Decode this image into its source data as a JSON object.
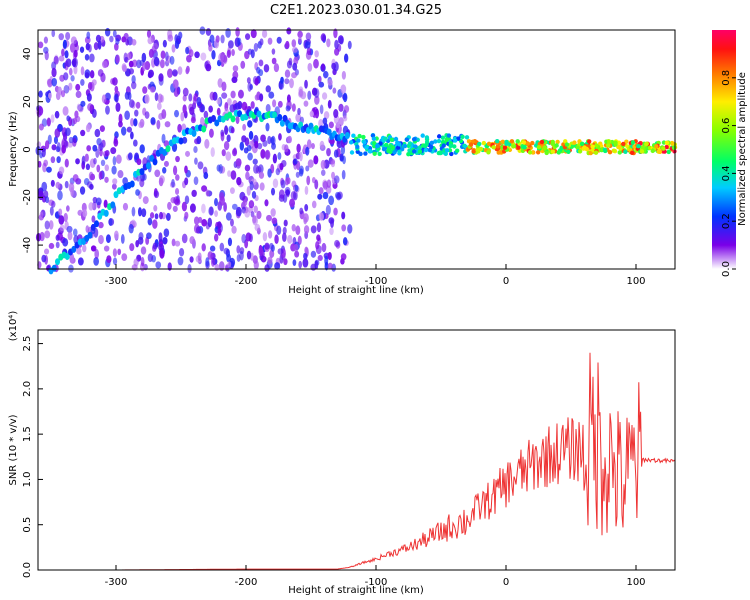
{
  "title": "C2E1.2023.030.01.34.G25",
  "colors": {
    "snr_line": "#ee3333",
    "axis": "#000000"
  },
  "chart_data": [
    {
      "type": "heatmap",
      "xlabel": "Height of straight line (km)",
      "ylabel": "Frequency (Hz)",
      "xlim": [
        -360,
        130
      ],
      "ylim": [
        -50,
        50
      ],
      "x_ticks": [
        -300,
        -200,
        -100,
        0,
        100
      ],
      "y_ticks": [
        -40,
        -20,
        0,
        20,
        40
      ],
      "colorbar": {
        "label": "Normalized spectral amplitude",
        "range": [
          0.0,
          1.0
        ],
        "ticks": [
          0.0,
          0.2,
          0.4,
          0.6,
          0.8
        ]
      },
      "features": [
        {
          "kind": "noise-field",
          "x_range": [
            -360,
            -120
          ],
          "y_range": [
            -50,
            50
          ],
          "amplitude": 0.1
        },
        {
          "kind": "arc",
          "points": [
            [
              -350,
              -50
            ],
            [
              -325,
              -38
            ],
            [
              -300,
              -20
            ],
            [
              -275,
              -6
            ],
            [
              -250,
              5
            ],
            [
              -225,
              12
            ],
            [
              -200,
              15
            ],
            [
              -180,
              14
            ],
            [
              -160,
              10
            ],
            [
              -140,
              7
            ],
            [
              -120,
              5
            ]
          ],
          "amplitude": 0.3
        },
        {
          "kind": "band",
          "x_range": [
            -120,
            -30
          ],
          "center": 2,
          "width": 4,
          "amplitude": 0.35
        },
        {
          "kind": "band",
          "x_range": [
            -30,
            100
          ],
          "center": 1,
          "width": 2.5,
          "amplitude": 0.65
        },
        {
          "kind": "band",
          "x_range": [
            100,
            130
          ],
          "center": 1,
          "width": 2,
          "amplitude": 0.7
        }
      ]
    },
    {
      "type": "line",
      "xlabel": "Height of straight line (km)",
      "ylabel": "SNR (10 * v/v)",
      "y_multiplier": "(x10⁴)",
      "xlim": [
        -360,
        130
      ],
      "ylim": [
        0,
        2.65
      ],
      "x_ticks": [
        -300,
        -200,
        -100,
        0,
        100
      ],
      "y_ticks": [
        0.0,
        0.5,
        1.0,
        1.5,
        2.0,
        2.5
      ],
      "series": [
        {
          "x": [
            -360,
            -300,
            -200,
            -130,
            -120,
            -110,
            -100,
            -90,
            -80,
            -70,
            -60,
            -50,
            -40,
            -30,
            -20,
            -10,
            0,
            10,
            20,
            30,
            40,
            50,
            60,
            70,
            80,
            90,
            100,
            105,
            130
          ],
          "y": [
            0.0,
            0.0,
            0.01,
            0.01,
            0.03,
            0.08,
            0.12,
            0.18,
            0.22,
            0.28,
            0.35,
            0.42,
            0.5,
            0.55,
            0.7,
            0.8,
            0.95,
            1.05,
            1.15,
            1.25,
            1.3,
            1.33,
            1.35,
            1.45,
            1.2,
            0.95,
            1.2,
            1.22,
            1.2
          ]
        }
      ]
    }
  ]
}
